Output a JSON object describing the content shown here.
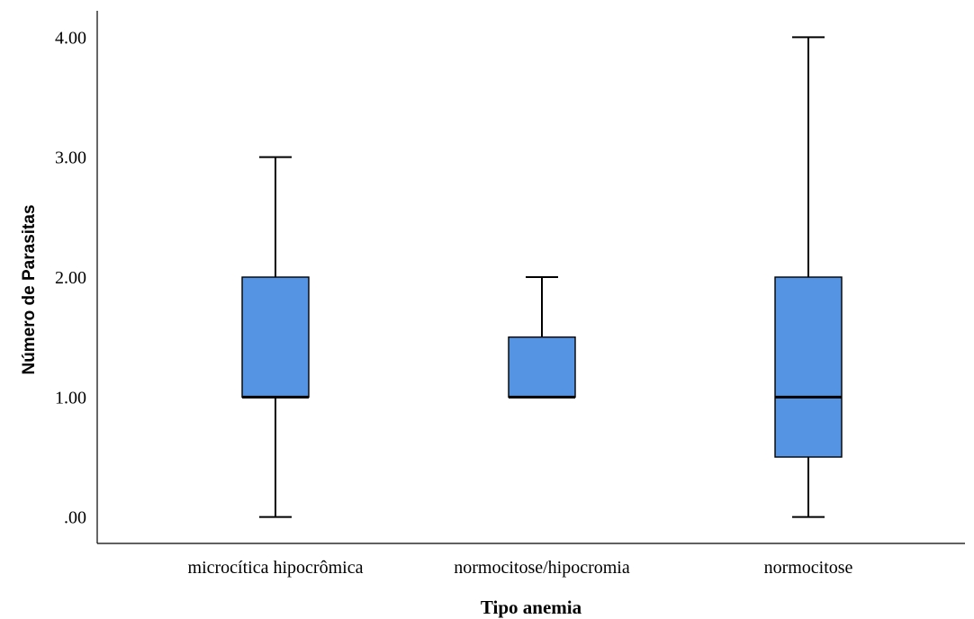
{
  "chart_data": {
    "type": "boxplot",
    "title": "",
    "xlabel": "Tipo anemia",
    "ylabel": "Número de Parasitas",
    "categories": [
      "microcítica hipocrômica",
      "normocitose/hipocromia",
      "normocitose"
    ],
    "y_ticks": [
      {
        "value": 0,
        "label": ".00"
      },
      {
        "value": 1,
        "label": "1.00"
      },
      {
        "value": 2,
        "label": "2.00"
      },
      {
        "value": 3,
        "label": "3.00"
      },
      {
        "value": 4,
        "label": "4.00"
      }
    ],
    "ylim": [
      -0.22,
      4.22
    ],
    "boxes": [
      {
        "category": "microcítica hipocrômica",
        "min": 0,
        "q1": 1,
        "median": 1,
        "q3": 2,
        "max": 3
      },
      {
        "category": "normocitose/hipocromia",
        "min": 1,
        "q1": 1,
        "median": 1,
        "q3": 1.5,
        "max": 2
      },
      {
        "category": "normocitose",
        "min": 0,
        "q1": 0.5,
        "median": 1,
        "q3": 2,
        "max": 4
      }
    ],
    "grid": false,
    "legend": "none",
    "colors": {
      "box_fill": "#5594E3",
      "stroke": "#000000",
      "axis": "#000000"
    }
  }
}
